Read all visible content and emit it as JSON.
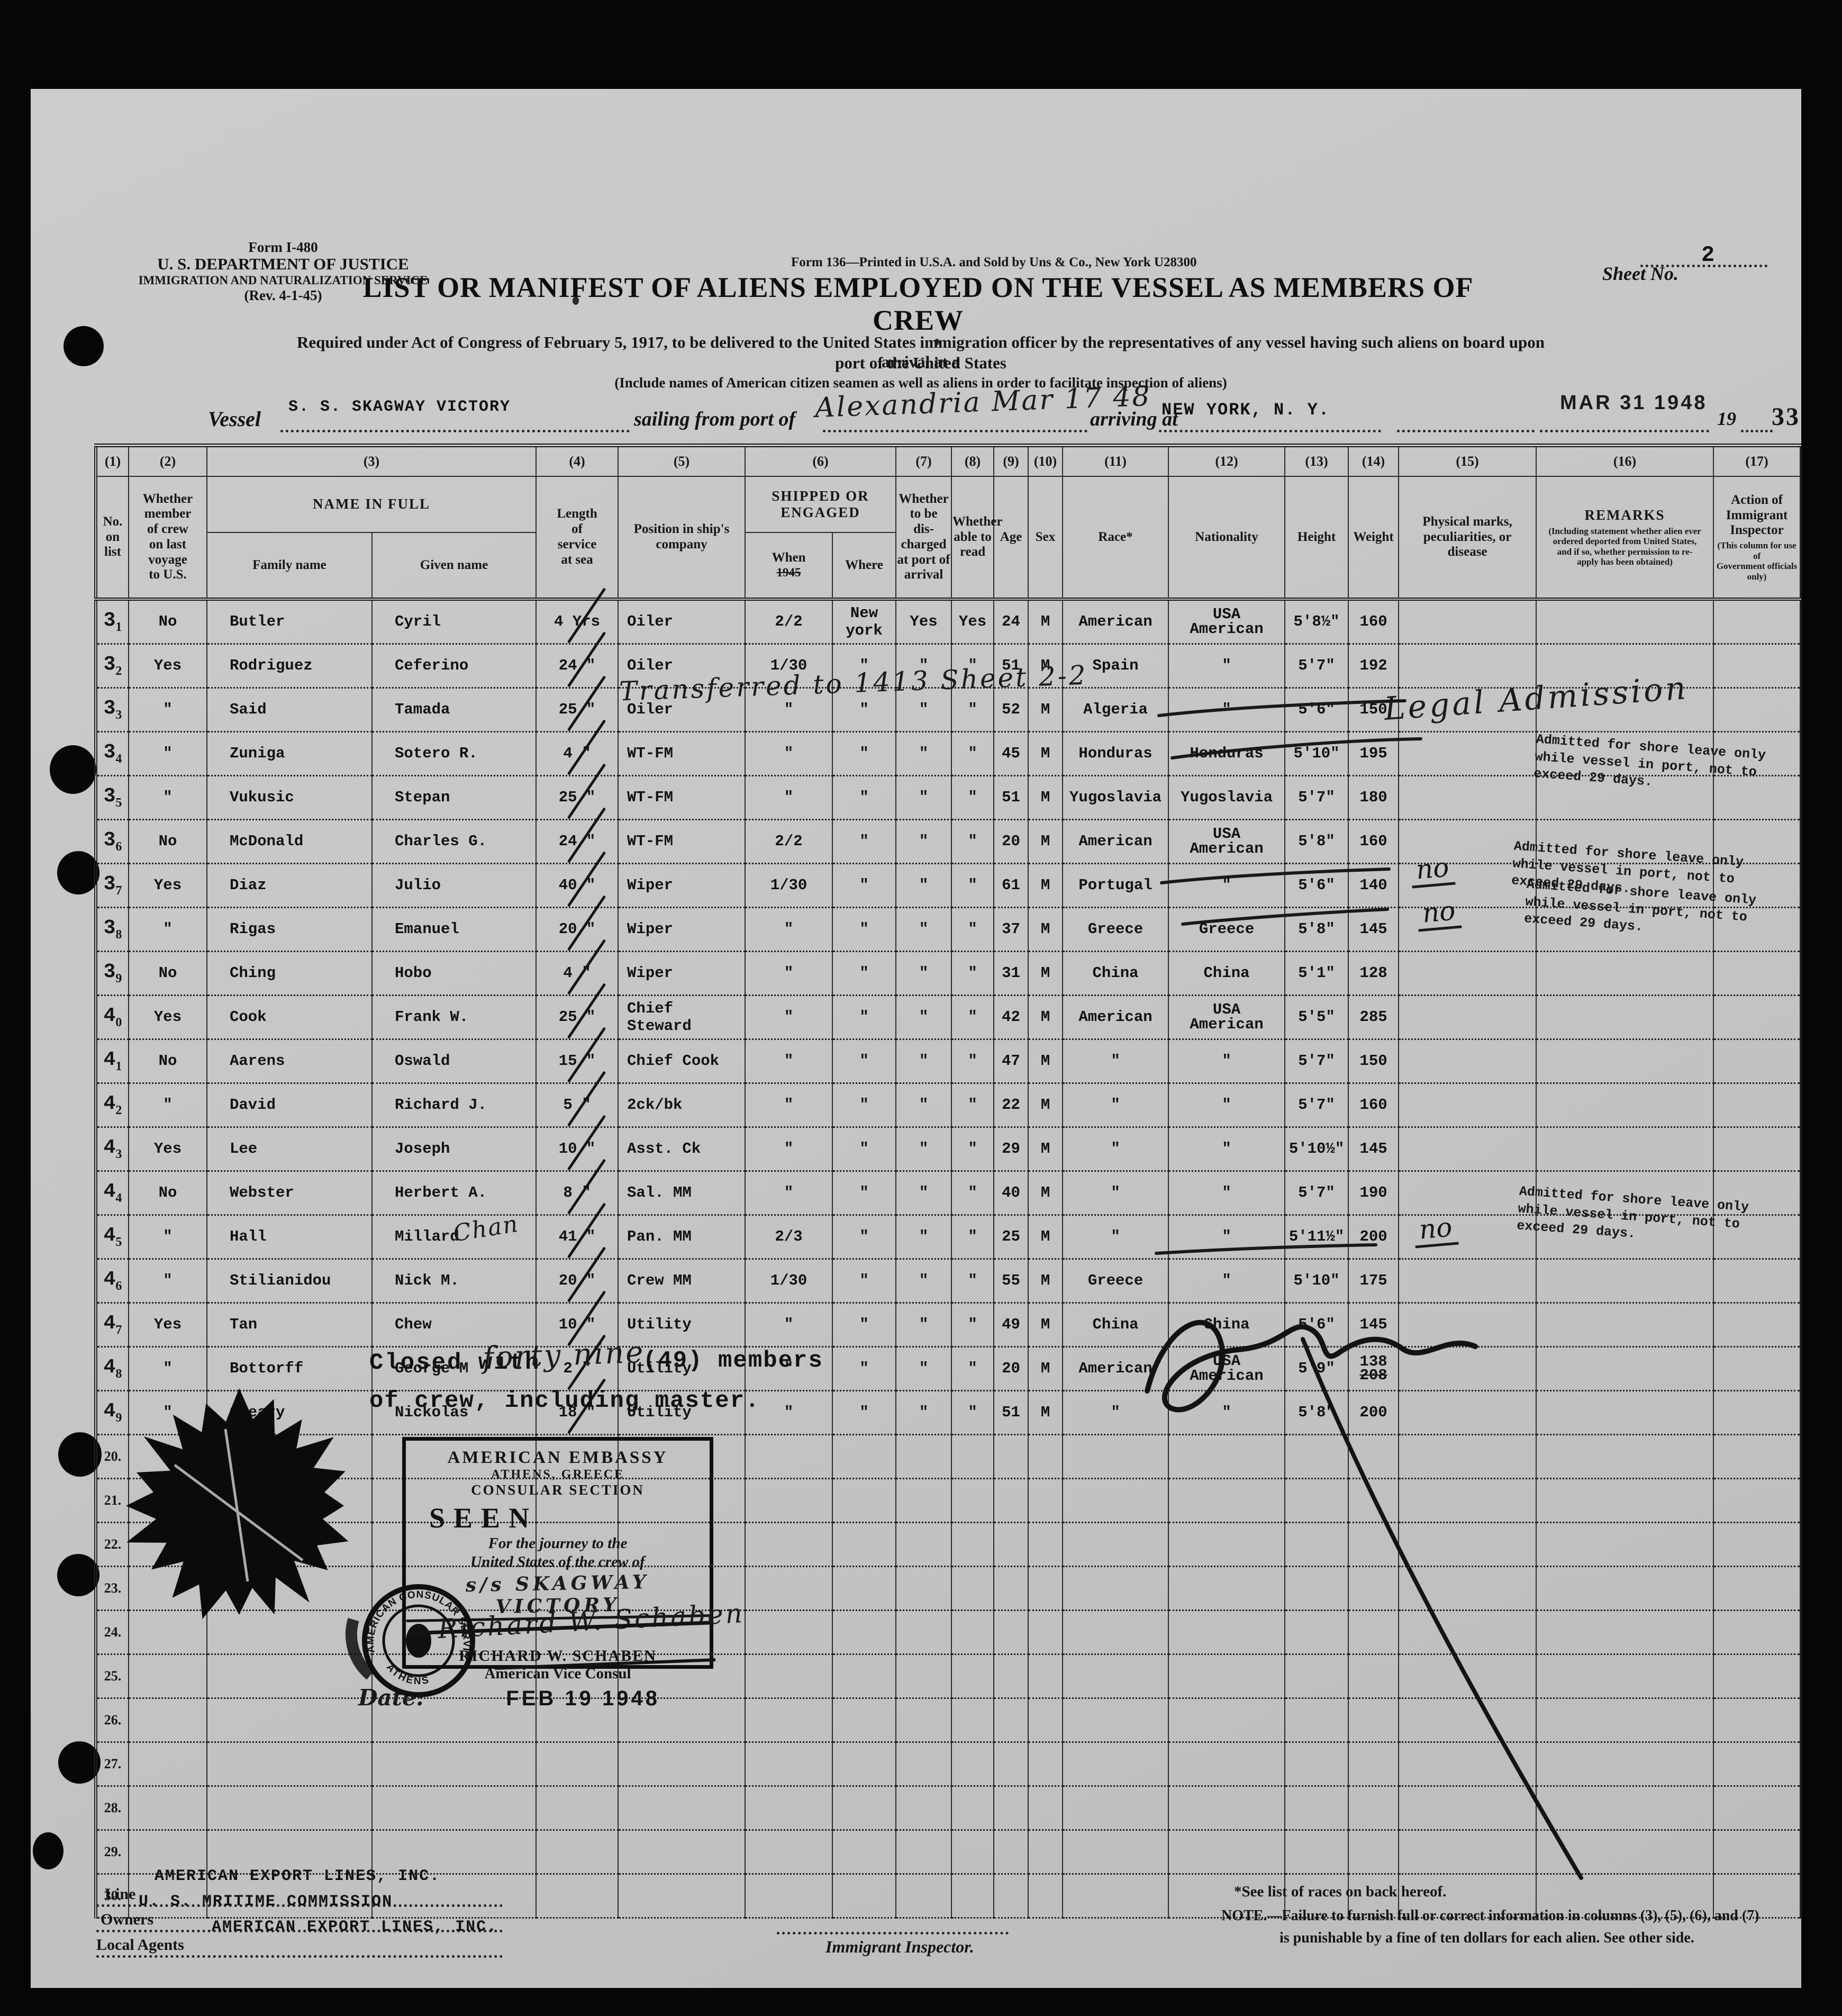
{
  "form_block": {
    "l1": "Form I-480",
    "l2": "U. S. DEPARTMENT OF JUSTICE",
    "l3": "IMMIGRATION AND NATURALIZATION SERVICE",
    "l4": "(Rev. 4-1-45)"
  },
  "print_note": "Form 136—Printed in U.S.A. and Sold by Uns & Co., New York   U28300",
  "sheet": {
    "label": "Sheet No.",
    "value": "2"
  },
  "title": "LIST OR MANIFEST OF ALIENS EMPLOYED ON THE VESSEL AS MEMBERS OF CREW",
  "required": {
    "line1": "Required under Act of Congress of February 5, 1917, to be delivered to the United States immigration officer by the representatives of any vessel having such aliens on board upon arrival at a",
    "line2": "port of the United States",
    "line3": "(Include names of American citizen seamen as well as aliens in order to facilitate inspection of aliens)"
  },
  "vessel": {
    "label": "Vessel",
    "name": "S. S. SKAGWAY VICTORY",
    "sail_label": "sailing from port of",
    "hand": "Alexandria   Mar 17 48",
    "arrive_label": "arriving at",
    "port": "NEW YORK, N. Y.",
    "date_stamp": "MAR 31 1948",
    "year": "19",
    "page_no": "33"
  },
  "columns": {
    "c1": {
      "num": "(1)",
      "label": "No.\non\nlist"
    },
    "c2": {
      "num": "(2)",
      "label": "Whether\nmember\nof crew\non last\nvoyage\nto U.S."
    },
    "c3": {
      "num": "(3)",
      "label": "NAME IN FULL",
      "sub1": "Family name",
      "sub2": "Given name"
    },
    "c4": {
      "num": "(4)",
      "label": "Length\nof\nservice\nat sea"
    },
    "c5": {
      "num": "(5)",
      "label": "Position in ship's\ncompany"
    },
    "c6": {
      "num": "(6)",
      "label": "SHIPPED OR ENGAGED",
      "sub1": "When",
      "sub1_note": "1945",
      "sub2": "Where"
    },
    "c7": {
      "num": "(7)",
      "label": "Whether\nto be\ndis-\ncharged\nat port of\narrival"
    },
    "c8": {
      "num": "(8)",
      "label": "Whether\nable to\nread"
    },
    "c9": {
      "num": "(9)",
      "label": "Age"
    },
    "c10": {
      "num": "(10)",
      "label": "Sex"
    },
    "c11": {
      "num": "(11)",
      "label": "Race*"
    },
    "c12": {
      "num": "(12)",
      "label": "Nationality"
    },
    "c13": {
      "num": "(13)",
      "label": "Height"
    },
    "c14": {
      "num": "(14)",
      "label": "Weight"
    },
    "c15": {
      "num": "(15)",
      "label": "Physical marks,\npeculiarities, or\ndisease"
    },
    "c16": {
      "num": "(16)",
      "label": "REMARKS",
      "note": "(Including statement whether alien ever\nordered deported from United States,\nand if so, whether permission to re-\napply has been obtained)"
    },
    "c17": {
      "num": "(17)",
      "label": "Action of Immigrant\nInspector",
      "note": "(This column for use of\nGovernment officials only)"
    }
  },
  "rows": [
    {
      "n1": "3",
      "n2": "1",
      "mem": "No",
      "fam": "Butler",
      "giv": "Cyril",
      "svc": "4",
      "svcu": "Yrs",
      "pos": "Oiler",
      "when": "2/2",
      "where": "New york",
      "dis": "Yes",
      "read": "Yes",
      "age": "24",
      "sex": "M",
      "race": "American",
      "nat": "USA\nAmerican",
      "ht": "5'8½\"",
      "wt": "160"
    },
    {
      "n1": "3",
      "n2": "2",
      "mem": "Yes",
      "fam": "Rodriguez",
      "giv": "Ceferino",
      "svc": "24",
      "svcu": "\"",
      "pos": "Oiler",
      "when": "1/30",
      "where": "\"",
      "dis": "\"",
      "read": "\"",
      "age": "51",
      "sex": "M",
      "race": "Spain",
      "nat": "\"",
      "ht": "5'7\"",
      "wt": "192"
    },
    {
      "n1": "3",
      "n2": "3",
      "mem": "\"",
      "fam": "Said",
      "giv": "Tamada",
      "svc": "25",
      "svcu": "\"",
      "pos": "Oiler",
      "when": "\"",
      "where": "\"",
      "dis": "\"",
      "read": "\"",
      "age": "52",
      "sex": "M",
      "race": "Algeria",
      "nat": "\"",
      "ht": "5'6\"",
      "wt": "150"
    },
    {
      "n1": "3",
      "n2": "4",
      "mem": "\"",
      "fam": "Zuniga",
      "giv": "Sotero R.",
      "svc": "4",
      "svcu": "\"",
      "pos": "WT-FM",
      "when": "\"",
      "where": "\"",
      "dis": "\"",
      "read": "\"",
      "age": "45",
      "sex": "M",
      "race": "Honduras",
      "nat": "Honduras",
      "ht": "5'10\"",
      "wt": "195"
    },
    {
      "n1": "3",
      "n2": "5",
      "mem": "\"",
      "fam": "Vukusic",
      "giv": "Stepan",
      "svc": "25",
      "svcu": "\"",
      "pos": "WT-FM",
      "when": "\"",
      "where": "\"",
      "dis": "\"",
      "read": "\"",
      "age": "51",
      "sex": "M",
      "race": "Yugoslavia",
      "nat": "Yugoslavia",
      "ht": "5'7\"",
      "wt": "180"
    },
    {
      "n1": "3",
      "n2": "6",
      "mem": "No",
      "fam": "McDonald",
      "giv": "Charles G.",
      "svc": "24",
      "svcu": "\"",
      "pos": "WT-FM",
      "when": "2/2",
      "where": "\"",
      "dis": "\"",
      "read": "\"",
      "age": "20",
      "sex": "M",
      "race": "American",
      "nat": "USA\nAmerican",
      "ht": "5'8\"",
      "wt": "160"
    },
    {
      "n1": "3",
      "n2": "7",
      "mem": "Yes",
      "fam": "Diaz",
      "giv": "Julio",
      "svc": "40",
      "svcu": "\"",
      "pos": "Wiper",
      "when": "1/30",
      "where": "\"",
      "dis": "\"",
      "read": "\"",
      "age": "61",
      "sex": "M",
      "race": "Portugal",
      "nat": "\"",
      "ht": "5'6\"",
      "wt": "140"
    },
    {
      "n1": "3",
      "n2": "8",
      "mem": "\"",
      "fam": "Rigas",
      "giv": "Emanuel",
      "svc": "20",
      "svcu": "\"",
      "pos": "Wiper",
      "when": "\"",
      "where": "\"",
      "dis": "\"",
      "read": "\"",
      "age": "37",
      "sex": "M",
      "race": "Greece",
      "nat": "Greece",
      "ht": "5'8\"",
      "wt": "145"
    },
    {
      "n1": "3",
      "n2": "9",
      "mem": "No",
      "fam": "Ching",
      "giv": "Hobo",
      "svc": "4",
      "svcu": "\"",
      "pos": "Wiper",
      "when": "\"",
      "where": "\"",
      "dis": "\"",
      "read": "\"",
      "age": "31",
      "sex": "M",
      "race": "China",
      "nat": "China",
      "ht": "5'1\"",
      "wt": "128"
    },
    {
      "n1": "4",
      "n2": "0",
      "mem": "Yes",
      "fam": "Cook",
      "giv": "Frank W.",
      "svc": "25",
      "svcu": "\"",
      "pos": "Chief Steward",
      "when": "\"",
      "where": "\"",
      "dis": "\"",
      "read": "\"",
      "age": "42",
      "sex": "M",
      "race": "American",
      "nat": "USA\nAmerican",
      "ht": "5'5\"",
      "wt": "285"
    },
    {
      "n1": "4",
      "n2": "1",
      "mem": "No",
      "fam": "Aarens",
      "giv": "Oswald",
      "svc": "15",
      "svcu": "\"",
      "pos": "Chief Cook",
      "when": "\"",
      "where": "\"",
      "dis": "\"",
      "read": "\"",
      "age": "47",
      "sex": "M",
      "race": "\"",
      "nat": "\"",
      "ht": "5'7\"",
      "wt": "150"
    },
    {
      "n1": "4",
      "n2": "2",
      "mem": "\"",
      "fam": "David",
      "giv": "Richard J.",
      "svc": "5",
      "svcu": "\"",
      "pos": "2ck/bk",
      "when": "\"",
      "where": "\"",
      "dis": "\"",
      "read": "\"",
      "age": "22",
      "sex": "M",
      "race": "\"",
      "nat": "\"",
      "ht": "5'7\"",
      "wt": "160"
    },
    {
      "n1": "4",
      "n2": "3",
      "mem": "Yes",
      "fam": "Lee",
      "giv": "Joseph",
      "svc": "10",
      "svcu": "\"",
      "pos": "Asst. Ck",
      "when": "\"",
      "where": "\"",
      "dis": "\"",
      "read": "\"",
      "age": "29",
      "sex": "M",
      "race": "\"",
      "nat": "\"",
      "ht": "5'10½\"",
      "wt": "145"
    },
    {
      "n1": "4",
      "n2": "4",
      "mem": "No",
      "fam": "Webster",
      "giv": "Herbert A.",
      "svc": "8",
      "svcu": "\"",
      "pos": "Sal. MM",
      "when": "\"",
      "where": "\"",
      "dis": "\"",
      "read": "\"",
      "age": "40",
      "sex": "M",
      "race": "\"",
      "nat": "\"",
      "ht": "5'7\"",
      "wt": "190"
    },
    {
      "n1": "4",
      "n2": "5",
      "mem": "\"",
      "fam": "Hall",
      "giv": "Millard",
      "svc": "41",
      "svcu": "\"",
      "pos": "Pan. MM",
      "when": "2/3",
      "where": "\"",
      "dis": "\"",
      "read": "\"",
      "age": "25",
      "sex": "M",
      "race": "\"",
      "nat": "\"",
      "ht": "5'11½\"",
      "wt": "200"
    },
    {
      "n1": "4",
      "n2": "6",
      "mem": "\"",
      "fam": "Stilianidou",
      "giv": "Nick M.",
      "svc": "20",
      "svcu": "\"",
      "pos": "Crew MM",
      "when": "1/30",
      "where": "\"",
      "dis": "\"",
      "read": "\"",
      "age": "55",
      "sex": "M",
      "race": "Greece",
      "nat": "\"",
      "ht": "5'10\"",
      "wt": "175"
    },
    {
      "n1": "4",
      "n2": "7",
      "mem": "Yes",
      "fam": "Tan",
      "giv": "Chew",
      "svc": "10",
      "svcu": "\"",
      "pos": "Utility",
      "when": "\"",
      "where": "\"",
      "dis": "\"",
      "read": "\"",
      "age": "49",
      "sex": "M",
      "race": "China",
      "nat": "China",
      "ht": "5'6\"",
      "wt": "145"
    },
    {
      "n1": "4",
      "n2": "8",
      "mem": "\"",
      "fam": "Bottorff",
      "giv": "George M",
      "svc": "2",
      "svcu": "\"",
      "pos": "Utility",
      "when": "\"",
      "where": "\"",
      "dis": "\"",
      "read": "\"",
      "age": "20",
      "sex": "M",
      "race": "American",
      "nat": "USA\nAmerican",
      "ht": "5'9\"",
      "wt": "138",
      "wts": "208"
    },
    {
      "n1": "4",
      "n2": "9",
      "mem": "\"",
      "fam": "Cleary",
      "giv": "Nickolas",
      "svc": "18",
      "svcu": "\"",
      "pos": "Utility",
      "when": "\"",
      "where": "\"",
      "dis": "\"",
      "read": "\"",
      "age": "51",
      "sex": "M",
      "race": "\"",
      "nat": "\"",
      "ht": "5'8\"",
      "wt": "200"
    }
  ],
  "empty_rows": [
    "20",
    "21",
    "22",
    "23",
    "24",
    "25",
    "26",
    "27",
    "28",
    "29",
    "30"
  ],
  "annotations": {
    "transfer": "Transferred to 1413   Sheet 2-2",
    "legal": "Legal Admission",
    "admitted": "Admitted for shore leave only\nwhile vessel in port, not to\nexceed 29 days.",
    "no_mark": "no",
    "chan": "Chan"
  },
  "closing": {
    "prefix": "Closed with",
    "hand": "forty nine",
    "mid": "(49) members",
    "line2": "of crew, including master."
  },
  "stamp": {
    "l1": "AMERICAN EMBASSY",
    "l2": "ATHENS, GREECE",
    "l3": "CONSULAR SECTION",
    "seen": "SEEN",
    "j1": "For the journey to the",
    "j2": "United States of the crew of",
    "ship_hand": "s/s SKAGWAY VICTORY",
    "signature": "Richard W. Schaben",
    "name": "RICHARD W. SCHABEN",
    "title": "American Vice Consul",
    "date_label": "Date:",
    "date_stamp": "FEB 19 1948"
  },
  "seal": {
    "arc_top": "AMERICAN CONSULAR SERVICE",
    "arc_bottom": "ATHENS"
  },
  "footer": {
    "line_label": "Line",
    "line_value": "AMERICAN EXPORT LINES, INC.",
    "owners_label": "Owners",
    "owners_value": "U. S. MRITIME COMMISSION",
    "agents_label": "Local Agents",
    "agents_value": "AMERICAN EXPORT LINES, INC.",
    "inspector": "Immigrant Inspector.",
    "note1": "*See list of races on back hereof.",
    "note2": "NOTE.—Failure to furnish full or correct information in columns (3), (5), (6), and (7)",
    "note3": "is punishable by a fine of ten dollars for each alien.  See other side."
  }
}
